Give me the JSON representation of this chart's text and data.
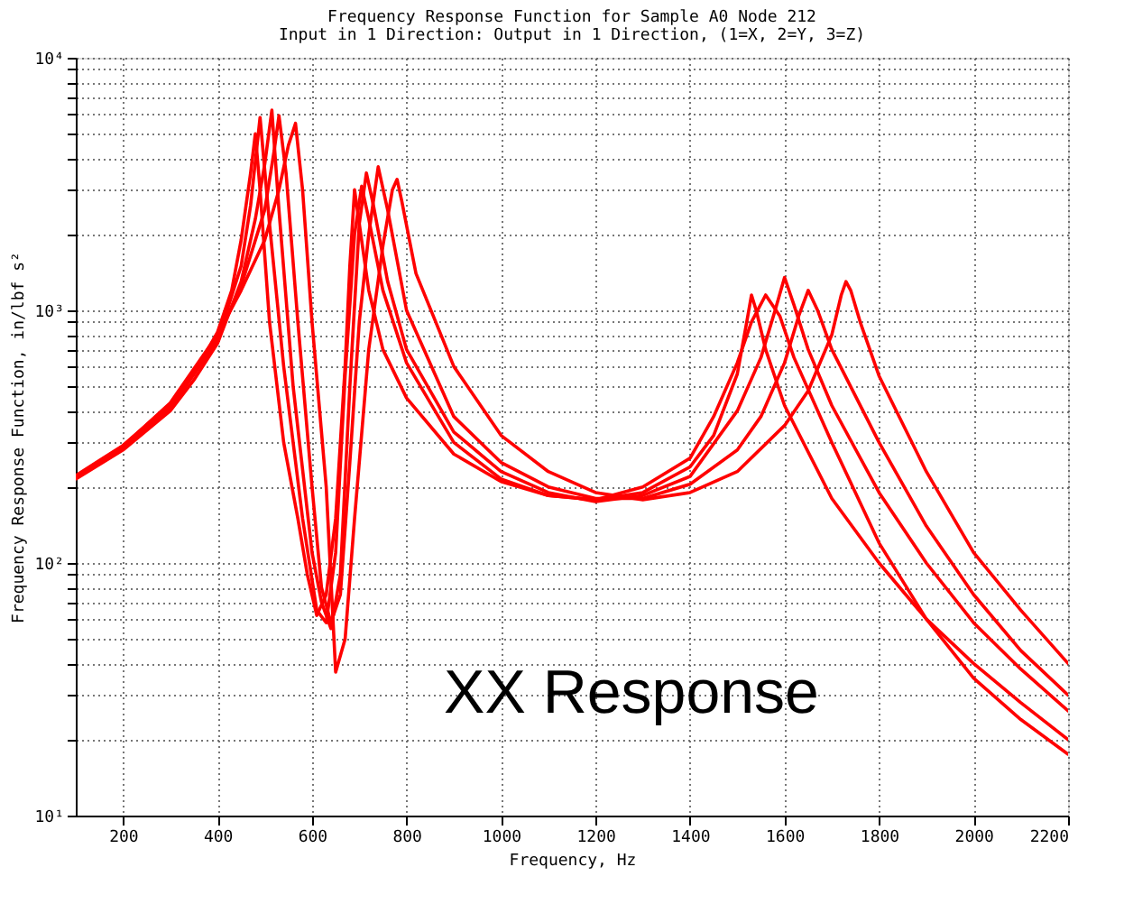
{
  "chart_data": {
    "type": "line",
    "title": "Frequency Response Function for Sample A0 Node 212",
    "subtitle": "Input in 1 Direction: Output in 1 Direction, (1=X, 2=Y, 3=Z)",
    "xlabel": "Frequency, Hz",
    "ylabel": "Frequency Response Function, in/lbf s²",
    "annotations": [
      "XX Response"
    ],
    "log": "y",
    "grid": true,
    "line_style": "solid",
    "xlim": [
      100,
      2200
    ],
    "xticks": [
      200,
      400,
      600,
      800,
      1000,
      1200,
      1400,
      1600,
      1800,
      2000,
      2200
    ],
    "ylim": [
      10,
      10000
    ],
    "yticks": [
      {
        "value": 10,
        "label": "10¹"
      },
      {
        "value": 20,
        "label": null
      },
      {
        "value": 30,
        "label": null
      },
      {
        "value": 40,
        "label": null
      },
      {
        "value": 50,
        "label": null
      },
      {
        "value": 60,
        "label": null
      },
      {
        "value": 70,
        "label": null
      },
      {
        "value": 80,
        "label": null
      },
      {
        "value": 90,
        "label": null
      },
      {
        "value": 100,
        "label": "10²"
      },
      {
        "value": 200,
        "label": null
      },
      {
        "value": 300,
        "label": null
      },
      {
        "value": 400,
        "label": null
      },
      {
        "value": 500,
        "label": null
      },
      {
        "value": 600,
        "label": null
      },
      {
        "value": 700,
        "label": null
      },
      {
        "value": 800,
        "label": null
      },
      {
        "value": 900,
        "label": null
      },
      {
        "value": 1000,
        "label": "10³"
      },
      {
        "value": 2000,
        "label": null
      },
      {
        "value": 3000,
        "label": null
      },
      {
        "value": 4000,
        "label": null
      },
      {
        "value": 5000,
        "label": null
      },
      {
        "value": 6000,
        "label": null
      },
      {
        "value": 7000,
        "label": null
      },
      {
        "value": 8000,
        "label": null
      },
      {
        "value": 9000,
        "label": null
      },
      {
        "value": 10000,
        "label": "10⁴"
      }
    ],
    "series": [
      {
        "color": "#ff0000",
        "x": [
          100,
          200,
          300,
          350,
          400,
          430,
          450,
          470,
          480,
          490,
          510,
          540,
          570,
          590,
          610,
          630,
          650,
          670,
          680,
          690,
          700,
          720,
          750,
          800,
          900,
          1000,
          1100,
          1200,
          1300,
          1400,
          1450,
          1500,
          1520,
          1530,
          1540,
          1560,
          1600,
          1700,
          1800,
          1900,
          2000,
          2100,
          2200
        ],
        "values": [
          220,
          290,
          420,
          560,
          820,
          1200,
          1900,
          3500,
          5000,
          3000,
          900,
          300,
          150,
          90,
          62,
          75,
          150,
          600,
          1500,
          3000,
          2200,
          1200,
          700,
          450,
          270,
          210,
          185,
          178,
          190,
          240,
          320,
          560,
          900,
          1150,
          1000,
          700,
          420,
          180,
          100,
          60,
          40,
          28,
          20
        ]
      },
      {
        "color": "#ff0000",
        "x": [
          100,
          200,
          300,
          350,
          400,
          450,
          480,
          500,
          515,
          530,
          560,
          600,
          620,
          640,
          660,
          680,
          700,
          715,
          730,
          760,
          800,
          900,
          1000,
          1100,
          1200,
          1300,
          1400,
          1500,
          1550,
          1580,
          1600,
          1620,
          1650,
          1700,
          1800,
          1900,
          2000,
          2100,
          2200
        ],
        "values": [
          215,
          280,
          400,
          530,
          740,
          1300,
          2300,
          3800,
          6200,
          2500,
          500,
          110,
          70,
          55,
          90,
          500,
          2200,
          3500,
          2600,
          1300,
          700,
          330,
          230,
          190,
          175,
          185,
          220,
          400,
          650,
          1000,
          1350,
          1050,
          700,
          420,
          190,
          100,
          58,
          38,
          26
        ]
      },
      {
        "color": "#ff0000",
        "x": [
          100,
          200,
          300,
          400,
          450,
          500,
          530,
          550,
          565,
          580,
          600,
          630,
          650,
          670,
          690,
          720,
          750,
          770,
          780,
          790,
          820,
          900,
          1000,
          1100,
          1200,
          1300,
          1400,
          1500,
          1600,
          1650,
          1700,
          1720,
          1730,
          1740,
          1760,
          1800,
          1900,
          2000,
          2100,
          2200
        ],
        "values": [
          220,
          290,
          430,
          800,
          1200,
          1900,
          3000,
          4500,
          5500,
          3000,
          900,
          200,
          37,
          50,
          150,
          700,
          1800,
          3000,
          3300,
          2700,
          1400,
          600,
          320,
          230,
          190,
          178,
          190,
          230,
          350,
          480,
          800,
          1150,
          1300,
          1200,
          900,
          550,
          230,
          110,
          65,
          40
        ]
      },
      {
        "color": "#ff0000",
        "x": [
          100,
          200,
          300,
          400,
          450,
          470,
          490,
          510,
          540,
          580,
          610,
          630,
          650,
          670,
          690,
          705,
          720,
          750,
          800,
          900,
          1000,
          1100,
          1200,
          1300,
          1400,
          1450,
          1500,
          1530,
          1560,
          1590,
          1620,
          1700,
          1800,
          1900,
          2000,
          2100,
          2200
        ],
        "values": [
          218,
          285,
          410,
          760,
          1500,
          2600,
          5800,
          2200,
          600,
          150,
          65,
          58,
          110,
          550,
          2000,
          3100,
          2300,
          1200,
          620,
          300,
          215,
          185,
          178,
          200,
          260,
          380,
          620,
          900,
          1150,
          950,
          650,
          300,
          120,
          60,
          35,
          24,
          17.5
        ]
      },
      {
        "color": "#ff0000",
        "x": [
          100,
          200,
          300,
          400,
          450,
          500,
          520,
          530,
          545,
          570,
          600,
          620,
          640,
          660,
          680,
          700,
          720,
          740,
          760,
          800,
          900,
          1000,
          1100,
          1200,
          1300,
          1400,
          1500,
          1550,
          1600,
          1630,
          1650,
          1670,
          1700,
          1800,
          1900,
          2000,
          2100,
          2200
        ],
        "values": [
          222,
          292,
          425,
          780,
          1250,
          2500,
          4300,
          5900,
          3500,
          900,
          200,
          80,
          58,
          75,
          250,
          900,
          2000,
          3700,
          2500,
          1000,
          380,
          250,
          200,
          180,
          180,
          205,
          280,
          380,
          620,
          950,
          1200,
          1000,
          700,
          300,
          140,
          75,
          45,
          30
        ]
      }
    ]
  }
}
